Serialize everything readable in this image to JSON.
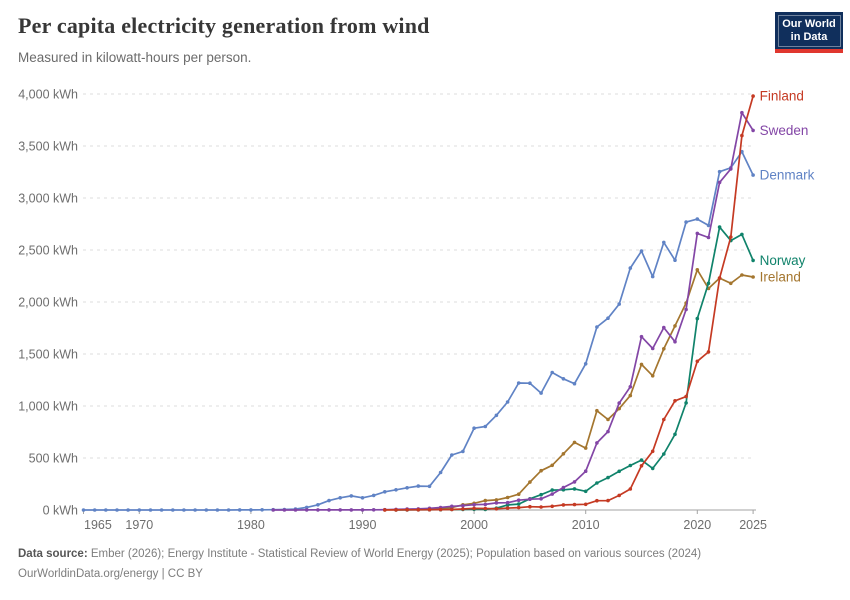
{
  "header": {
    "title": "Per capita electricity generation from wind",
    "subtitle": "Measured in kilowatt-hours per person.",
    "logo": {
      "line1": "Our World",
      "line2": "in Data",
      "bg_color": "#102F5C",
      "bar_color": "#E0372E"
    }
  },
  "footer": {
    "source_label": "Data source:",
    "source_text": " Ember (2026); Energy Institute - Statistical Review of World Energy (2025); Population based on various sources (2024)",
    "link_line": "OurWorldinData.org/energy | CC BY"
  },
  "chart_data": {
    "type": "line",
    "title": "Per capita electricity generation from wind",
    "ylabel": "kilowatt-hours per person",
    "unit": "kWh",
    "grid": true,
    "legend_position": "right-end-labels",
    "x_range": [
      1965,
      2025
    ],
    "ylim": [
      0,
      4000
    ],
    "x_ticks": [
      {
        "year": 1965,
        "label": "1965"
      },
      {
        "year": 1970,
        "label": "1970"
      },
      {
        "year": 1980,
        "label": "1980"
      },
      {
        "year": 1990,
        "label": "1990"
      },
      {
        "year": 2000,
        "label": "2000"
      },
      {
        "year": 2010,
        "label": "2010"
      },
      {
        "year": 2020,
        "label": "2020"
      },
      {
        "year": 2025,
        "label": "2025"
      }
    ],
    "y_ticks": [
      {
        "value": 0,
        "label": "0 kWh"
      },
      {
        "value": 500,
        "label": "500 kWh"
      },
      {
        "value": 1000,
        "label": "1,000 kWh"
      },
      {
        "value": 1500,
        "label": "1,500 kWh"
      },
      {
        "value": 2000,
        "label": "2,000 kWh"
      },
      {
        "value": 2500,
        "label": "2,500 kWh"
      },
      {
        "value": 3000,
        "label": "3,000 kWh"
      },
      {
        "value": 3500,
        "label": "3,500 kWh"
      },
      {
        "value": 4000,
        "label": "4,000 kWh"
      }
    ],
    "series": [
      {
        "name": "Denmark",
        "color": "#6083C5",
        "start_year": 1965,
        "values": [
          0,
          0,
          0,
          0,
          0,
          0,
          0,
          0,
          0,
          0,
          0,
          0,
          0,
          0,
          1,
          1,
          2,
          3,
          5,
          9,
          25,
          50,
          90,
          117,
          136,
          117,
          140,
          175,
          194,
          213,
          230,
          228,
          361,
          529,
          563,
          787,
          803,
          911,
          1038,
          1221,
          1219,
          1124,
          1322,
          1262,
          1214,
          1406,
          1760,
          1844,
          1980,
          2326,
          2489,
          2244,
          2573,
          2402,
          2768,
          2797,
          2737,
          3253,
          3290,
          3445,
          3220
        ]
      },
      {
        "name": "Ireland",
        "color": "#A4762F",
        "start_year": 1992,
        "values": [
          1,
          2,
          4,
          5,
          11,
          14,
          23,
          50,
          64,
          90,
          97,
          120,
          152,
          268,
          378,
          430,
          540,
          650,
          595,
          955,
          870,
          975,
          1100,
          1400,
          1290,
          1550,
          1770,
          1990,
          2310,
          2130,
          2230,
          2180,
          2260,
          2240
        ]
      },
      {
        "name": "Norway",
        "color": "#10836B",
        "start_year": 1993,
        "values": [
          1,
          1,
          2,
          2,
          3,
          5,
          6,
          7,
          6,
          17,
          49,
          57,
          108,
          147,
          191,
          194,
          203,
          180,
          260,
          312,
          372,
          428,
          480,
          400,
          538,
          728,
          1030,
          1840,
          2180,
          2720,
          2590,
          2650,
          2400
        ]
      },
      {
        "name": "Sweden",
        "color": "#8346A6",
        "start_year": 1982,
        "values": [
          0,
          0,
          0,
          1,
          1,
          1,
          1,
          1,
          1,
          2,
          3,
          6,
          9,
          11,
          16,
          24,
          36,
          41,
          51,
          54,
          68,
          70,
          94,
          104,
          108,
          153,
          216,
          270,
          373,
          645,
          754,
          1028,
          1185,
          1666,
          1553,
          1754,
          1618,
          1928,
          2660,
          2620,
          3150,
          3280,
          3820,
          3650
        ]
      },
      {
        "name": "Finland",
        "color": "#C53A23",
        "start_year": 1992,
        "values": [
          1,
          1,
          2,
          2,
          3,
          4,
          5,
          10,
          15,
          14,
          12,
          18,
          23,
          32,
          29,
          36,
          49,
          52,
          55,
          89,
          90,
          140,
          202,
          425,
          564,
          870,
          1050,
          1090,
          1430,
          1520,
          2230,
          2625,
          3600,
          3980
        ]
      }
    ],
    "style": {
      "grid_color": "#dcdcdc",
      "axis_color": "#a3a3a3",
      "tick_text_color": "#6e6e6e"
    }
  }
}
